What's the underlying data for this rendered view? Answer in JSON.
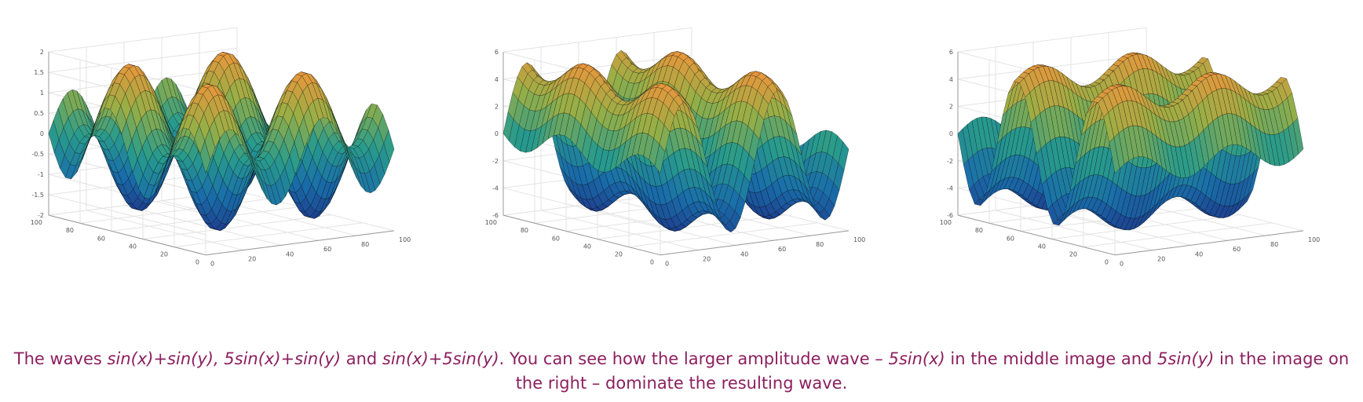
{
  "chart_data": [
    {
      "type": "surface",
      "formula": "sin(x)+sin(y)",
      "amp_x": 1,
      "amp_y": 1,
      "x_range": [
        0,
        100
      ],
      "y_range": [
        0,
        100
      ],
      "z_range": [
        -2,
        2
      ],
      "x_ticks": [
        "0",
        "20",
        "40",
        "60",
        "80",
        "100"
      ],
      "y_ticks": [
        "0",
        "20",
        "40",
        "60",
        "80",
        "100"
      ],
      "z_ticks": [
        "2",
        "1.5",
        "1",
        "0.5",
        "0",
        "-0.5",
        "-1",
        "-1.5",
        "-2"
      ],
      "grid": true
    },
    {
      "type": "surface",
      "formula": "5sin(x)+sin(y)",
      "amp_x": 5,
      "amp_y": 1,
      "x_range": [
        0,
        100
      ],
      "y_range": [
        0,
        100
      ],
      "z_range": [
        -6,
        6
      ],
      "x_ticks": [
        "0",
        "20",
        "40",
        "60",
        "80",
        "100"
      ],
      "y_ticks": [
        "0",
        "20",
        "40",
        "60",
        "80",
        "100"
      ],
      "z_ticks": [
        "6",
        "4",
        "2",
        "0",
        "-2",
        "-4",
        "-6"
      ],
      "grid": true
    },
    {
      "type": "surface",
      "formula": "sin(x)+5sin(y)",
      "amp_x": 1,
      "amp_y": 5,
      "x_range": [
        0,
        100
      ],
      "y_range": [
        0,
        100
      ],
      "z_range": [
        -6,
        6
      ],
      "x_ticks": [
        "0",
        "20",
        "40",
        "60",
        "80",
        "100"
      ],
      "y_ticks": [
        "0",
        "20",
        "40",
        "60",
        "80",
        "100"
      ],
      "z_ticks": [
        "6",
        "4",
        "2",
        "0",
        "-2",
        "-4",
        "-6"
      ],
      "grid": true
    }
  ],
  "caption": {
    "t1": "The waves ",
    "f1": "sin(x)+sin(y), 5sin(x)+sin(y)",
    "t2": " and ",
    "f2": "sin(x)+5sin(y)",
    "t3": ". You can see how the larger amplitude wave – ",
    "f3": "5sin(x)",
    "t4": " in the middle image and ",
    "f4": "5sin(y)",
    "t5": " in the image on the right – dominate the resulting wave."
  }
}
